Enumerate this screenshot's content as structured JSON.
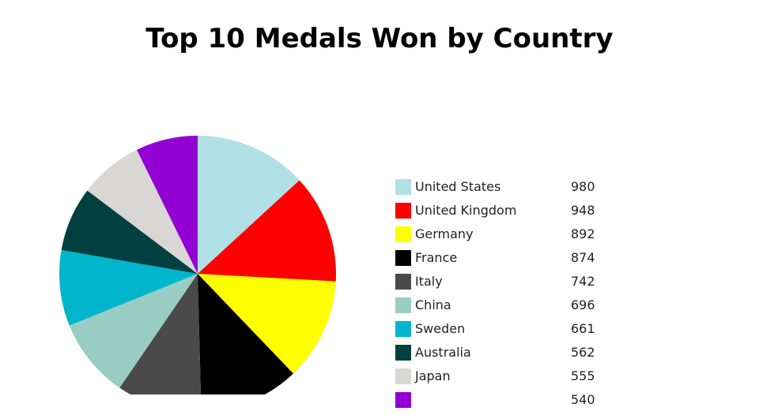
{
  "chart_data": {
    "type": "pie",
    "title": "Top 10 Medals Won by Country",
    "legend_position": "right",
    "slices": [
      {
        "label": "United States",
        "value": 980,
        "color": "#b0e0e6"
      },
      {
        "label": "United Kingdom",
        "value": 948,
        "color": "#ff0000"
      },
      {
        "label": "Germany",
        "value": 892,
        "color": "#ffff00"
      },
      {
        "label": "France",
        "value": 874,
        "color": "#000000"
      },
      {
        "label": "Italy",
        "value": 742,
        "color": "#4a4a4a"
      },
      {
        "label": "China",
        "value": 696,
        "color": "#99cdc3"
      },
      {
        "label": "Sweden",
        "value": 661,
        "color": "#00b5cc"
      },
      {
        "label": "Australia",
        "value": 562,
        "color": "#004040"
      },
      {
        "label": "Japan",
        "value": 555,
        "color": "#d9d6d6"
      },
      {
        "label": "",
        "value": 540,
        "color": "#9400d3"
      }
    ]
  }
}
